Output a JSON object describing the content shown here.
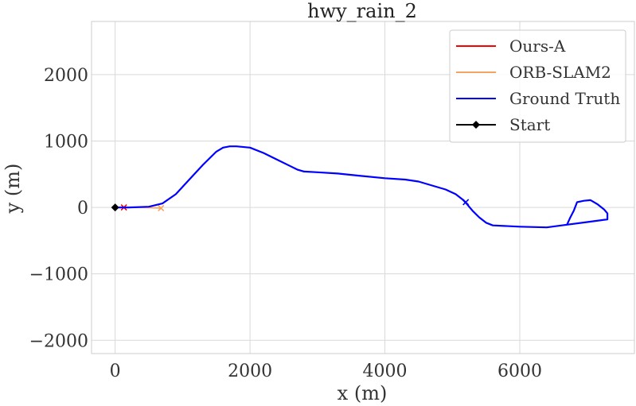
{
  "chart_data": {
    "type": "line",
    "title": "hwy_rain_2",
    "xlabel": "x (m)",
    "ylabel": "y (m)",
    "xlim": [
      -350,
      7700
    ],
    "ylim": [
      -2200,
      2800
    ],
    "xticks": [
      0,
      2000,
      4000,
      6000
    ],
    "yticks": [
      -2000,
      -1000,
      0,
      1000,
      2000
    ],
    "xtick_labels": [
      "0",
      "2000",
      "4000",
      "6000"
    ],
    "ytick_labels": [
      "−2000",
      "−1000",
      "0",
      "1000",
      "2000"
    ],
    "grid": true,
    "legend_position": "top-right",
    "series": [
      {
        "name": "Ours-A",
        "color": "#ff0000",
        "x": [
          130,
          140,
          150
        ],
        "y": [
          0,
          0,
          0
        ],
        "end_marker": {
          "x": 130,
          "y": 0
        }
      },
      {
        "name": "ORB-SLAM2",
        "color": "#f4a460",
        "x": [
          130,
          400,
          680
        ],
        "y": [
          0,
          0,
          -10
        ],
        "end_marker": {
          "x": 680,
          "y": -10
        }
      },
      {
        "name": "Ground Truth",
        "color": "#0000ff",
        "x": [
          0,
          200,
          500,
          700,
          900,
          1100,
          1300,
          1500,
          1600,
          1700,
          1800,
          2000,
          2200,
          2400,
          2600,
          2700,
          2800,
          3000,
          3300,
          3600,
          4000,
          4300,
          4500,
          4700,
          4900,
          5050,
          5150,
          5200,
          5300,
          5400,
          5500,
          5600,
          6000,
          6400,
          6700,
          6750,
          6800,
          6850,
          6950,
          7050,
          7150,
          7250,
          7300,
          7300,
          7000,
          6700
        ],
        "y": [
          0,
          0,
          10,
          60,
          200,
          420,
          640,
          840,
          900,
          920,
          920,
          900,
          820,
          720,
          620,
          570,
          540,
          530,
          510,
          480,
          440,
          420,
          390,
          330,
          270,
          200,
          120,
          70,
          -50,
          -150,
          -230,
          -270,
          -290,
          -300,
          -260,
          -150,
          -50,
          80,
          100,
          110,
          50,
          -30,
          -90,
          -180,
          -220,
          -260
        ],
        "end_marker": {
          "x": 5200,
          "y": 80
        }
      },
      {
        "name": "Start",
        "color": "#000000",
        "x": [
          0
        ],
        "y": [
          0
        ],
        "marker": "diamond"
      }
    ]
  }
}
